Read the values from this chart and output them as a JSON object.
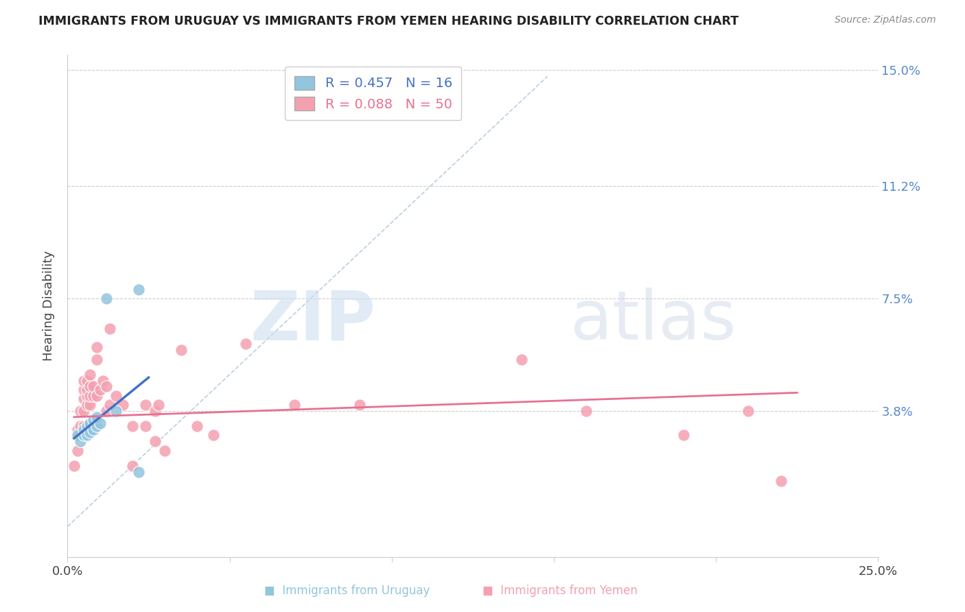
{
  "title": "IMMIGRANTS FROM URUGUAY VS IMMIGRANTS FROM YEMEN HEARING DISABILITY CORRELATION CHART",
  "source": "Source: ZipAtlas.com",
  "ylabel": "Hearing Disability",
  "xlim": [
    0.0,
    0.25
  ],
  "ylim": [
    -0.01,
    0.155
  ],
  "xticks": [
    0.0,
    0.05,
    0.1,
    0.15,
    0.2,
    0.25
  ],
  "xticklabels": [
    "0.0%",
    "",
    "",
    "",
    "",
    "25.0%"
  ],
  "yticks_right_vals": [
    0.038,
    0.075,
    0.112,
    0.15
  ],
  "ytick_labels_right": [
    "3.8%",
    "7.5%",
    "11.2%",
    "15.0%"
  ],
  "uruguay_color": "#92c5de",
  "yemen_color": "#f4a0b0",
  "uruguay_line_color": "#4472c4",
  "yemen_line_color": "#e87090",
  "diagonal_color": "#b8cfe0",
  "watermark_zip": "ZIP",
  "watermark_atlas": "atlas",
  "uruguay_points": [
    [
      0.003,
      0.03
    ],
    [
      0.004,
      0.028
    ],
    [
      0.005,
      0.03
    ],
    [
      0.005,
      0.032
    ],
    [
      0.006,
      0.03
    ],
    [
      0.006,
      0.033
    ],
    [
      0.007,
      0.031
    ],
    [
      0.007,
      0.034
    ],
    [
      0.008,
      0.032
    ],
    [
      0.008,
      0.035
    ],
    [
      0.009,
      0.033
    ],
    [
      0.009,
      0.036
    ],
    [
      0.01,
      0.034
    ],
    [
      0.012,
      0.075
    ],
    [
      0.015,
      0.038
    ],
    [
      0.022,
      0.078
    ],
    [
      0.022,
      0.018
    ]
  ],
  "yemen_points": [
    [
      0.002,
      0.02
    ],
    [
      0.003,
      0.025
    ],
    [
      0.003,
      0.03
    ],
    [
      0.003,
      0.032
    ],
    [
      0.004,
      0.03
    ],
    [
      0.004,
      0.033
    ],
    [
      0.004,
      0.038
    ],
    [
      0.005,
      0.03
    ],
    [
      0.005,
      0.033
    ],
    [
      0.005,
      0.038
    ],
    [
      0.005,
      0.042
    ],
    [
      0.005,
      0.045
    ],
    [
      0.005,
      0.048
    ],
    [
      0.006,
      0.04
    ],
    [
      0.006,
      0.043
    ],
    [
      0.006,
      0.045
    ],
    [
      0.006,
      0.048
    ],
    [
      0.007,
      0.04
    ],
    [
      0.007,
      0.043
    ],
    [
      0.007,
      0.046
    ],
    [
      0.007,
      0.05
    ],
    [
      0.008,
      0.043
    ],
    [
      0.008,
      0.046
    ],
    [
      0.009,
      0.043
    ],
    [
      0.009,
      0.055
    ],
    [
      0.009,
      0.059
    ],
    [
      0.01,
      0.045
    ],
    [
      0.011,
      0.048
    ],
    [
      0.012,
      0.038
    ],
    [
      0.012,
      0.046
    ],
    [
      0.013,
      0.04
    ],
    [
      0.013,
      0.065
    ],
    [
      0.015,
      0.043
    ],
    [
      0.017,
      0.04
    ],
    [
      0.02,
      0.033
    ],
    [
      0.02,
      0.02
    ],
    [
      0.024,
      0.033
    ],
    [
      0.024,
      0.04
    ],
    [
      0.027,
      0.038
    ],
    [
      0.027,
      0.028
    ],
    [
      0.028,
      0.04
    ],
    [
      0.03,
      0.025
    ],
    [
      0.035,
      0.058
    ],
    [
      0.04,
      0.033
    ],
    [
      0.045,
      0.03
    ],
    [
      0.055,
      0.06
    ],
    [
      0.07,
      0.04
    ],
    [
      0.09,
      0.04
    ],
    [
      0.14,
      0.055
    ],
    [
      0.16,
      0.038
    ],
    [
      0.19,
      0.03
    ],
    [
      0.21,
      0.038
    ],
    [
      0.22,
      0.015
    ]
  ],
  "uruguay_trendline": [
    [
      0.002,
      0.029
    ],
    [
      0.025,
      0.049
    ]
  ],
  "yemen_trendline": [
    [
      0.002,
      0.036
    ],
    [
      0.225,
      0.044
    ]
  ],
  "diagonal_line": [
    [
      0.0,
      0.0
    ],
    [
      0.148,
      0.148
    ]
  ]
}
